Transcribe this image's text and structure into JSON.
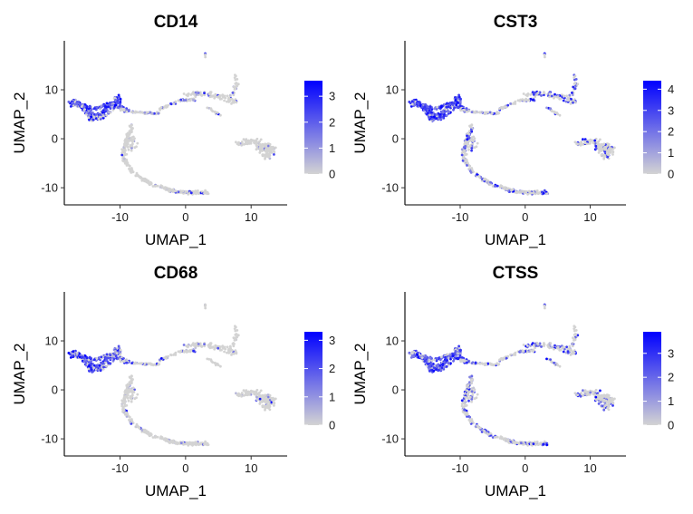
{
  "chart_data": [
    {
      "type": "scatter",
      "title": "CD14",
      "xlabel": "UMAP_1",
      "ylabel": "UMAP_2",
      "xlim": [
        -18.5,
        15.5
      ],
      "ylim": [
        -13.5,
        20
      ],
      "xticks": [
        -10,
        0,
        10
      ],
      "yticks": [
        -10,
        0,
        10
      ],
      "grid": false,
      "legend": "right",
      "color_scale": {
        "low": "#d3d3d3",
        "high": "#0000ff",
        "min": 0,
        "max": 3.6,
        "ticks": [
          0,
          1,
          2,
          3
        ]
      },
      "hot_regions": [
        {
          "region": "left arm (approx. x -18 to -9, y 3 to 9)",
          "level": 0.75
        },
        {
          "region": "bottom-right end of curved branch",
          "level": 0.15
        },
        {
          "region": "upper-right cluster",
          "level": 0.1
        }
      ]
    },
    {
      "type": "scatter",
      "title": "CST3",
      "xlabel": "UMAP_1",
      "ylabel": "UMAP_2",
      "xlim": [
        -18.5,
        15.5
      ],
      "ylim": [
        -13.5,
        20
      ],
      "xticks": [
        -10,
        0,
        10
      ],
      "yticks": [
        -10,
        0,
        10
      ],
      "grid": false,
      "legend": "right",
      "color_scale": {
        "low": "#d3d3d3",
        "high": "#0000ff",
        "min": 0,
        "max": 4.4,
        "ticks": [
          0,
          1,
          2,
          3,
          4
        ]
      },
      "hot_regions": [
        {
          "region": "left arm (approx. x -18 to -9, y 3 to 11)",
          "level": 0.85
        },
        {
          "region": "curved branch and upper-right cluster",
          "level": 0.3
        },
        {
          "region": "right cluster",
          "level": 0.2
        }
      ]
    },
    {
      "type": "scatter",
      "title": "CD68",
      "xlabel": "UMAP_1",
      "ylabel": "UMAP_2",
      "xlim": [
        -18.5,
        15.5
      ],
      "ylim": [
        -13.5,
        20
      ],
      "xticks": [
        -10,
        0,
        10
      ],
      "yticks": [
        -10,
        0,
        10
      ],
      "grid": false,
      "legend": "right",
      "color_scale": {
        "low": "#d3d3d3",
        "high": "#0000ff",
        "min": 0,
        "max": 3.3,
        "ticks": [
          0,
          1,
          2,
          3
        ]
      },
      "hot_regions": [
        {
          "region": "left arm (approx. x -18 to -9, y 3 to 10)",
          "level": 0.7
        },
        {
          "region": "other clusters",
          "level": 0.05
        }
      ]
    },
    {
      "type": "scatter",
      "title": "CTSS",
      "xlabel": "UMAP_1",
      "ylabel": "UMAP_2",
      "xlim": [
        -18.5,
        15.5
      ],
      "ylim": [
        -13.5,
        20
      ],
      "xticks": [
        -10,
        0,
        10
      ],
      "yticks": [
        -10,
        0,
        10
      ],
      "grid": false,
      "legend": "right",
      "color_scale": {
        "low": "#d3d3d3",
        "high": "#0000ff",
        "min": 0,
        "max": 3.9,
        "ticks": [
          0,
          1,
          2,
          3
        ]
      },
      "hot_regions": [
        {
          "region": "left arm (approx. x -18 to -9, y 3 to 10)",
          "level": 0.8
        },
        {
          "region": "curved branch, upper-right and right clusters",
          "level": 0.25
        }
      ]
    }
  ]
}
